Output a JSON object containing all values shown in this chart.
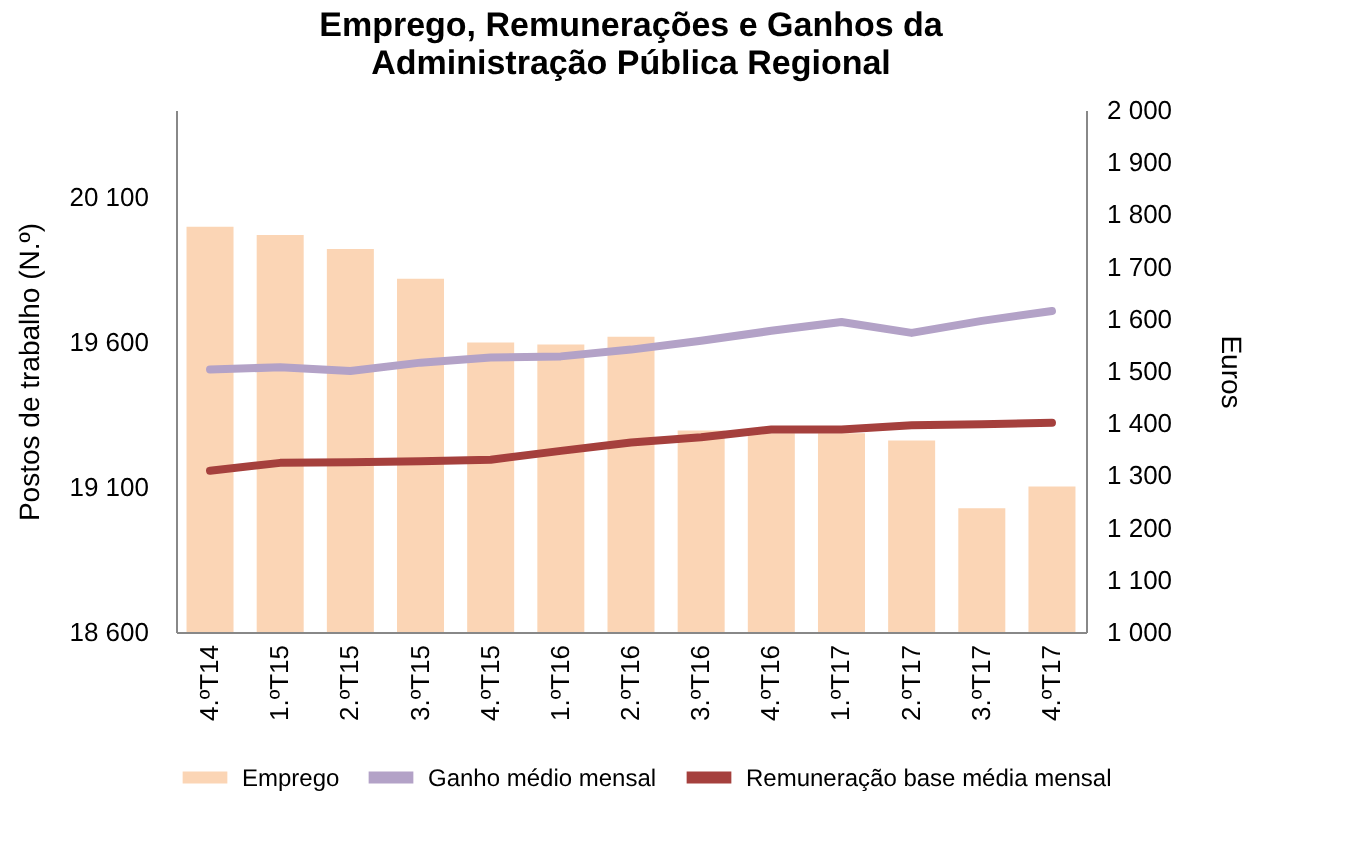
{
  "chart_data": {
    "type": "bar",
    "title": "Emprego, Remunerações e Ganhos  da\nAdministração Pública Regional",
    "ylabel": "Postos de trabalho (N.º)",
    "y2label": "Euros",
    "categories": [
      "4.ºT14",
      "1.ºT15",
      "2.ºT15",
      "3.ºT15",
      "4.ºT15",
      "1.ºT16",
      "2.ºT16",
      "3.ºT16",
      "4.ºT16",
      "1.ºT17",
      "2.ºT17",
      "3.ºT17",
      "4.ºT17"
    ],
    "series": [
      {
        "name": "Emprego",
        "color": "#fbd5b5",
        "values": [
          19997,
          19969,
          19921,
          19818,
          19598,
          19591,
          19618,
          19295,
          19285,
          19285,
          19260,
          19027,
          19102
        ]
      },
      {
        "name": "Ganho médio mensal",
        "type": "line",
        "axis": "y2",
        "color": "#b3a2c7",
        "values": [
          1503,
          1507,
          1500,
          1516,
          1526,
          1528,
          1541,
          1558,
          1577,
          1594,
          1573,
          1596,
          1615
        ]
      },
      {
        "name": "Remuneração base média mensal",
        "type": "line",
        "axis": "y2",
        "color": "#a5403d",
        "values": [
          1309,
          1324,
          1325,
          1327,
          1330,
          1347,
          1363,
          1373,
          1388,
          1388,
          1396,
          1398,
          1401
        ]
      }
    ],
    "ylim": [
      18600,
      20400
    ],
    "yticks": [
      {
        "value": 18600,
        "label": "18 600"
      },
      {
        "value": 19100,
        "label": "19 100"
      },
      {
        "value": 19600,
        "label": "19 600"
      },
      {
        "value": 20100,
        "label": "20 100"
      }
    ],
    "y2lim": [
      1000,
      2000
    ],
    "y2ticks": [
      {
        "value": 1000,
        "label": "1 000"
      },
      {
        "value": 1100,
        "label": "1 100"
      },
      {
        "value": 1200,
        "label": "1 200"
      },
      {
        "value": 1300,
        "label": "1 300"
      },
      {
        "value": 1400,
        "label": "1 400"
      },
      {
        "value": 1500,
        "label": "1 500"
      },
      {
        "value": 1600,
        "label": "1 600"
      },
      {
        "value": 1700,
        "label": "1 700"
      },
      {
        "value": 1800,
        "label": "1 800"
      },
      {
        "value": 1900,
        "label": "1 900"
      },
      {
        "value": 2000,
        "label": "2 000"
      }
    ],
    "legend": "bottom",
    "grid": false,
    "marker": "none",
    "line_style": "solid"
  }
}
